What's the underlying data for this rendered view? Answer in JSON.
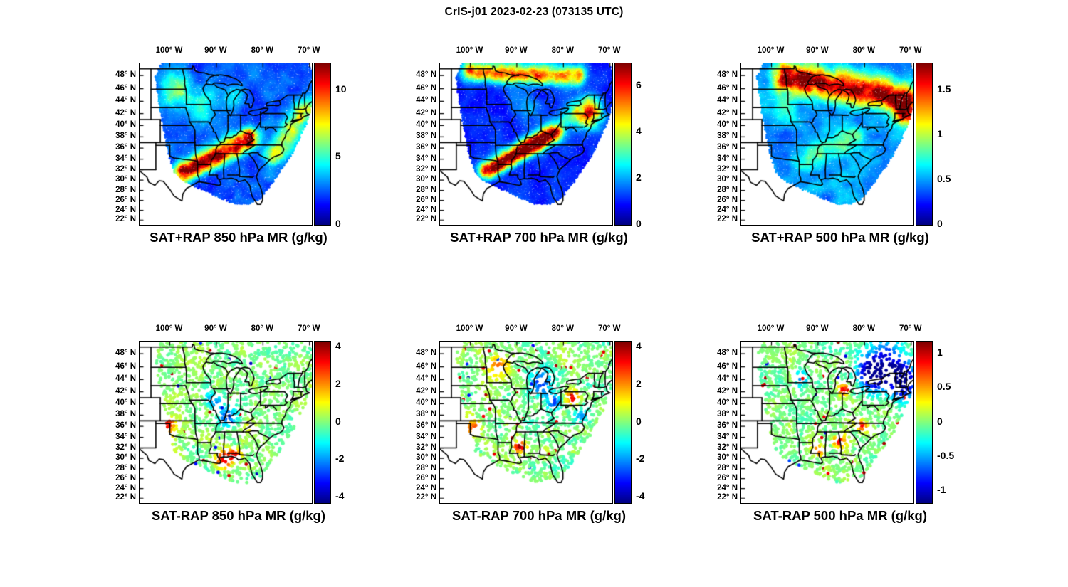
{
  "chart_data": {
    "type": "heatmap",
    "title": "CrIS-j01 2023-02-23 (073135 UTC)",
    "colormap": "jet",
    "grid": "off",
    "legend_position": "colorbar-right",
    "geo": {
      "lon_range": [
        -106.5,
        -69.5
      ],
      "lat_range": [
        21.0,
        49.8
      ],
      "projection": "mercator",
      "x_tick_lons": [
        -100,
        -90,
        -80,
        -70
      ],
      "x_tick_labels": [
        "100° W",
        "90° W",
        "80° W",
        "70° W"
      ],
      "y_tick_lats": [
        48,
        46,
        44,
        42,
        40,
        38,
        36,
        34,
        32,
        30,
        28,
        26,
        24,
        22
      ],
      "y_tick_labels": [
        "48° N",
        "46° N",
        "44° N",
        "42° N",
        "40° N",
        "38° N",
        "36° N",
        "34° N",
        "32° N",
        "30° N",
        "28° N",
        "26° N",
        "24° N",
        "22° N"
      ]
    },
    "panels": [
      {
        "id": "sat-plus-rap-850",
        "title": "SAT+RAP 850 hPa MR (g/kg)",
        "row": 0,
        "col": 0,
        "style": "filled",
        "cbar": {
          "min": 0,
          "max": 12,
          "tick_values": [
            0,
            5,
            10
          ],
          "tick_labels": [
            "0",
            "5",
            "10"
          ]
        },
        "render": {
          "base": 0.1,
          "noise": 0.2,
          "features": [
            {
              "type": "band",
              "a": [
                -97.0,
                31.5
              ],
              "b": [
                -83.0,
                37.5
              ],
              "w": 2.1,
              "amp": 0.85
            },
            {
              "type": "band",
              "a": [
                -77.5,
                34.5
              ],
              "b": [
                -71.0,
                42.5
              ],
              "w": 2.2,
              "amp": 0.4
            },
            {
              "type": "blob",
              "c": [
                -99.0,
                45.5
              ],
              "r": 3.5,
              "amp": 0.3
            },
            {
              "type": "blob",
              "c": [
                -92.5,
                43.5
              ],
              "r": 3.0,
              "amp": 0.22
            },
            {
              "type": "blob",
              "c": [
                -86.0,
                44.5
              ],
              "r": 2.5,
              "amp": 0.18
            }
          ]
        }
      },
      {
        "id": "sat-plus-rap-700",
        "title": "SAT+RAP 700 hPa MR (g/kg)",
        "row": 0,
        "col": 1,
        "style": "filled",
        "cbar": {
          "min": 0,
          "max": 7,
          "tick_values": [
            0,
            2,
            4,
            6
          ],
          "tick_labels": [
            "0",
            "2",
            "4",
            "6"
          ]
        },
        "render": {
          "base": 0.08,
          "noise": 0.16,
          "features": [
            {
              "type": "band",
              "a": [
                -96.0,
                32.0
              ],
              "b": [
                -82.5,
                38.5
              ],
              "w": 1.8,
              "amp": 0.95
            },
            {
              "type": "band",
              "a": [
                -100.0,
                48.6
              ],
              "b": [
                -77.0,
                47.9
              ],
              "w": 1.7,
              "amp": 0.6
            },
            {
              "type": "blob",
              "c": [
                -74.0,
                41.5
              ],
              "r": 2.6,
              "amp": 0.55
            },
            {
              "type": "band",
              "a": [
                -80.0,
                40.0
              ],
              "b": [
                -75.0,
                43.5
              ],
              "w": 2.2,
              "amp": 0.3
            },
            {
              "type": "blob",
              "c": [
                -88.0,
                43.0
              ],
              "r": 3.0,
              "amp": 0.15
            }
          ]
        }
      },
      {
        "id": "sat-plus-rap-500",
        "title": "SAT+RAP 500 hPa MR (g/kg)",
        "row": 0,
        "col": 2,
        "style": "filled",
        "cbar": {
          "min": 0,
          "max": 1.8,
          "tick_values": [
            0,
            0.5,
            1,
            1.5
          ],
          "tick_labels": [
            "0",
            "0.5",
            "1",
            "1.5"
          ]
        },
        "render": {
          "base": 0.16,
          "noise": 0.22,
          "features": [
            {
              "type": "band",
              "a": [
                -97.0,
                47.8
              ],
              "b": [
                -71.5,
                44.5
              ],
              "w": 2.6,
              "amp": 0.75
            },
            {
              "type": "blob",
              "c": [
                -71.3,
                42.0
              ],
              "r": 2.4,
              "amp": 0.55
            },
            {
              "type": "band",
              "a": [
                -92.0,
                33.5
              ],
              "b": [
                -83.0,
                38.0
              ],
              "w": 2.6,
              "amp": 0.18
            },
            {
              "type": "blob",
              "c": [
                -97.0,
                43.0
              ],
              "r": 3.0,
              "amp": 0.15
            }
          ]
        }
      },
      {
        "id": "sat-minus-rap-850",
        "title": "SAT-RAP 850 hPa MR (g/kg)",
        "row": 1,
        "col": 0,
        "style": "dots",
        "cbar": {
          "min": -4.3,
          "max": 4.3,
          "tick_values": [
            -4,
            -2,
            0,
            2,
            4
          ],
          "tick_labels": [
            "-4",
            "-2",
            "0",
            "2",
            "4"
          ]
        },
        "render": {
          "base": 0.5,
          "jitter": 0.11,
          "hi_prob": 0.012,
          "lo_prob": 0.008,
          "features": [
            {
              "type": "blob",
              "c": [
                -100.8,
                36.2
              ],
              "r": 2.0,
              "amp": 0.34
            },
            {
              "type": "blob",
              "c": [
                -100.6,
                33.3
              ],
              "r": 1.4,
              "amp": 0.26
            },
            {
              "type": "blob",
              "c": [
                -88.3,
                29.9
              ],
              "r": 2.0,
              "amp": 0.44
            },
            {
              "type": "blob",
              "c": [
                -85.8,
                30.8
              ],
              "r": 1.4,
              "amp": 0.32
            },
            {
              "type": "blob",
              "c": [
                -87.6,
                37.6
              ],
              "r": 2.2,
              "amp": -0.32
            },
            {
              "type": "blob",
              "c": [
                -90.5,
                40.5
              ],
              "r": 1.6,
              "amp": -0.22
            },
            {
              "type": "blob",
              "c": [
                -83.0,
                36.0
              ],
              "r": 1.6,
              "amp": 0.18
            }
          ]
        }
      },
      {
        "id": "sat-minus-rap-700",
        "title": "SAT-RAP 700 hPa MR (g/kg)",
        "row": 1,
        "col": 1,
        "style": "dots",
        "cbar": {
          "min": -4.3,
          "max": 4.3,
          "tick_values": [
            -4,
            -2,
            0,
            2,
            4
          ],
          "tick_labels": [
            "-4",
            "-2",
            "0",
            "2",
            "4"
          ]
        },
        "render": {
          "base": 0.5,
          "jitter": 0.12,
          "hi_prob": 0.02,
          "lo_prob": 0.012,
          "features": [
            {
              "type": "blob",
              "c": [
                -89.3,
                32.3
              ],
              "r": 1.3,
              "amp": 0.45
            },
            {
              "type": "blob",
              "c": [
                -99.5,
                35.6
              ],
              "r": 1.8,
              "amp": 0.3
            },
            {
              "type": "blob",
              "c": [
                -94.0,
                46.0
              ],
              "r": 2.4,
              "amp": 0.28
            },
            {
              "type": "blob",
              "c": [
                -85.0,
                43.5
              ],
              "r": 2.4,
              "amp": -0.34
            },
            {
              "type": "blob",
              "c": [
                -82.0,
                40.5
              ],
              "r": 1.8,
              "amp": -0.28
            },
            {
              "type": "blob",
              "c": [
                -78.0,
                41.0
              ],
              "r": 1.4,
              "amp": 0.34
            },
            {
              "type": "blob",
              "c": [
                -76.0,
                38.0
              ],
              "r": 1.5,
              "amp": -0.25
            }
          ]
        }
      },
      {
        "id": "sat-minus-rap-500",
        "title": "SAT-RAP 500 hPa MR (g/kg)",
        "row": 1,
        "col": 2,
        "style": "dots",
        "cbar": {
          "min": -1.18,
          "max": 1.18,
          "tick_values": [
            -1,
            -0.5,
            0,
            0.5,
            1
          ],
          "tick_labels": [
            "-1",
            "-0.5",
            "0",
            "0.5",
            "1"
          ]
        },
        "render": {
          "base": 0.5,
          "jitter": 0.1,
          "hi_prob": 0.01,
          "lo_prob": 0.01,
          "features": [
            {
              "type": "blob",
              "c": [
                -75.5,
                46.0
              ],
              "r": 4.5,
              "amp": -0.42
            },
            {
              "type": "blob",
              "c": [
                -71.5,
                43.5
              ],
              "r": 3.2,
              "amp": -0.42
            },
            {
              "type": "blob",
              "c": [
                -78.8,
                44.8
              ],
              "r": 2.8,
              "amp": -0.34
            },
            {
              "type": "blob",
              "c": [
                -84.5,
                42.3
              ],
              "r": 1.2,
              "amp": 0.4
            },
            {
              "type": "blob",
              "c": [
                -80.6,
                36.2
              ],
              "r": 1.2,
              "amp": 0.4
            },
            {
              "type": "blob",
              "c": [
                -85.5,
                33.2
              ],
              "r": 1.4,
              "amp": 0.34
            },
            {
              "type": "blob",
              "c": [
                -89.8,
                31.6
              ],
              "r": 1.4,
              "amp": 0.28
            },
            {
              "type": "blob",
              "c": [
                -93.5,
                44.0
              ],
              "r": 1.5,
              "amp": -0.25
            }
          ]
        }
      }
    ]
  }
}
